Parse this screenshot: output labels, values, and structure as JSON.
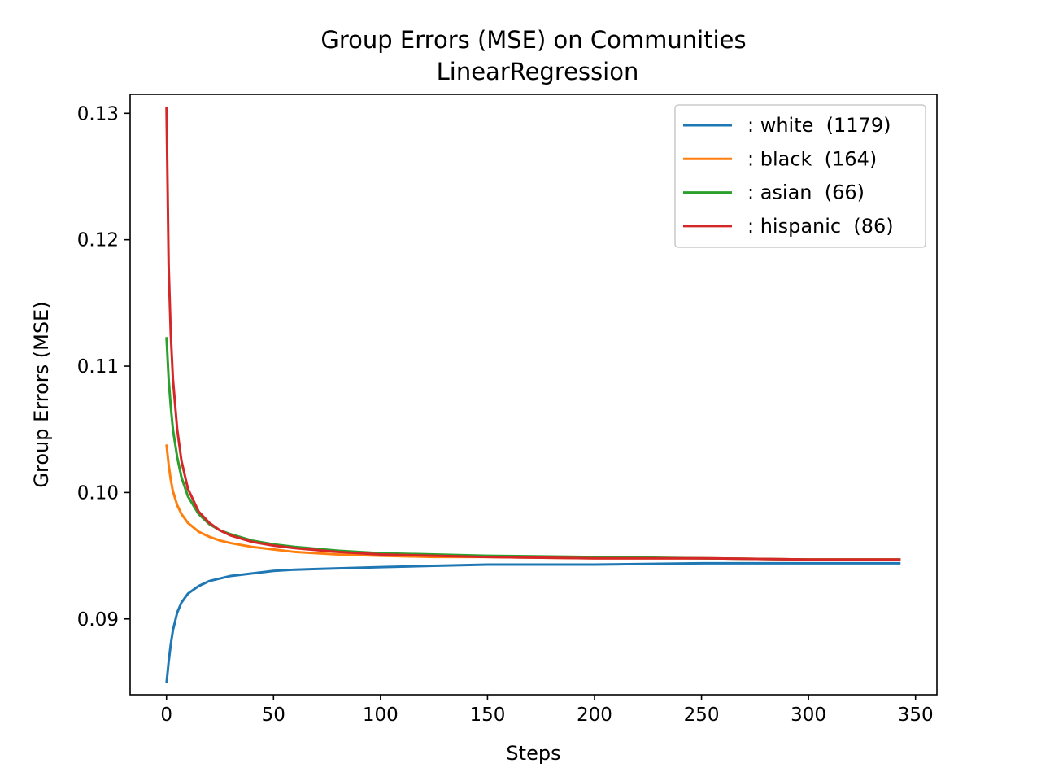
{
  "chart_data": {
    "type": "line",
    "title": "Group Errors (MSE) on Communities",
    "subtitle": "LinearRegression",
    "xlabel": "Steps",
    "ylabel": "Group Errors (MSE)",
    "xlim": [
      -17,
      360
    ],
    "ylim": [
      0.084,
      0.1315
    ],
    "xticks": [
      0,
      50,
      100,
      150,
      200,
      250,
      300,
      350
    ],
    "yticks": [
      0.09,
      0.1,
      0.11,
      0.12,
      0.13
    ],
    "xtick_labels": [
      "0",
      "50",
      "100",
      "150",
      "200",
      "250",
      "300",
      "350"
    ],
    "ytick_labels": [
      "0.09",
      "0.10",
      "0.11",
      "0.12",
      "0.13"
    ],
    "grid": false,
    "legend_position": "top-right",
    "series": [
      {
        "name": ": white  (1179)",
        "color": "#1f77b4",
        "x": [
          0,
          1,
          2,
          3,
          5,
          7,
          10,
          15,
          20,
          25,
          30,
          40,
          50,
          60,
          80,
          100,
          125,
          150,
          200,
          250,
          300,
          343
        ],
        "y": [
          0.0849,
          0.0866,
          0.088,
          0.0891,
          0.0905,
          0.0913,
          0.092,
          0.0926,
          0.093,
          0.0932,
          0.0934,
          0.0936,
          0.0938,
          0.0939,
          0.094,
          0.0941,
          0.0942,
          0.0943,
          0.0943,
          0.0944,
          0.0944,
          0.0944
        ]
      },
      {
        "name": ": black  (164)",
        "color": "#ff7f0e",
        "x": [
          0,
          1,
          2,
          3,
          5,
          7,
          10,
          15,
          20,
          25,
          30,
          40,
          50,
          60,
          80,
          100,
          125,
          150,
          200,
          250,
          300,
          343
        ],
        "y": [
          0.1038,
          0.1022,
          0.101,
          0.1001,
          0.099,
          0.0983,
          0.0976,
          0.0969,
          0.0965,
          0.0962,
          0.096,
          0.0957,
          0.0955,
          0.0953,
          0.0951,
          0.095,
          0.0949,
          0.0949,
          0.0948,
          0.0948,
          0.0947,
          0.0947
        ]
      },
      {
        "name": ": asian  (66)",
        "color": "#2ca02c",
        "x": [
          0,
          1,
          2,
          3,
          5,
          7,
          10,
          15,
          20,
          25,
          30,
          40,
          50,
          60,
          80,
          100,
          125,
          150,
          200,
          250,
          300,
          343
        ],
        "y": [
          0.1123,
          0.109,
          0.1068,
          0.105,
          0.1028,
          0.1012,
          0.0997,
          0.0983,
          0.0975,
          0.097,
          0.0967,
          0.0962,
          0.0959,
          0.0957,
          0.0954,
          0.0952,
          0.0951,
          0.095,
          0.0949,
          0.0948,
          0.0947,
          0.0947
        ]
      },
      {
        "name": ": hispanic  (86)",
        "color": "#d62728",
        "x": [
          0,
          1,
          2,
          3,
          5,
          7,
          10,
          15,
          20,
          25,
          30,
          40,
          50,
          60,
          80,
          100,
          125,
          150,
          200,
          250,
          300,
          343
        ],
        "y": [
          0.1305,
          0.118,
          0.1125,
          0.109,
          0.105,
          0.1025,
          0.1003,
          0.0985,
          0.0976,
          0.097,
          0.0966,
          0.0961,
          0.0958,
          0.0956,
          0.0953,
          0.0951,
          0.095,
          0.0949,
          0.0948,
          0.0948,
          0.0947,
          0.0947
        ]
      }
    ]
  }
}
